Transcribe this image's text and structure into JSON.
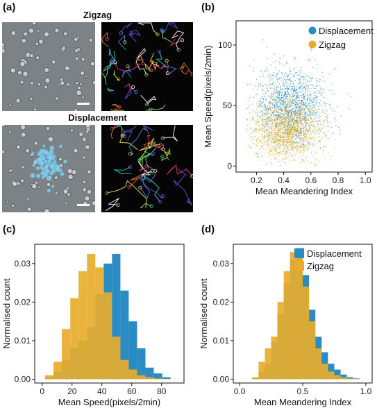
{
  "panels": {
    "a": {
      "label": "(a)",
      "top_title": "Zigzag",
      "bottom_title": "Displacement"
    },
    "b": {
      "label": "(b)"
    },
    "c": {
      "label": "(c)"
    },
    "d": {
      "label": "(d)"
    }
  },
  "colors": {
    "displacement": "#2b8cc4",
    "zigzag": "#e8ac2a",
    "micro_bg": "#7c8286",
    "track_bg": "#050505"
  },
  "chart_data": [
    {
      "id": "b",
      "type": "scatter",
      "xlabel": "Mean Meandering Index",
      "ylabel": "Mean Speed(pixels/2min)",
      "xlim": [
        0.05,
        1.05
      ],
      "ylim": [
        -5,
        120
      ],
      "xticks": [
        0.2,
        0.4,
        0.6,
        0.8,
        1.0
      ],
      "xtick_labels": [
        "0.2",
        "0.4",
        "0.6",
        "0.8",
        "1.0"
      ],
      "yticks": [
        0,
        50,
        100
      ],
      "ytick_labels": [
        "0",
        "50",
        "100"
      ],
      "legend_position": "top-right",
      "series": [
        {
          "name": "Displacement",
          "center": [
            0.45,
            48
          ],
          "spread": [
            0.13,
            16
          ]
        },
        {
          "name": "Zigzag",
          "center": [
            0.42,
            30
          ],
          "spread": [
            0.12,
            12
          ]
        }
      ]
    },
    {
      "id": "c",
      "type": "bar",
      "xlabel": "Mean Speed(pixels/2min)",
      "ylabel": "Normalised count",
      "xlim": [
        -5,
        95
      ],
      "ylim": [
        -0.001,
        0.035
      ],
      "xticks": [
        0,
        20,
        40,
        60,
        80
      ],
      "xtick_labels": [
        "0",
        "20",
        "40",
        "60",
        "80"
      ],
      "yticks": [
        0.0,
        0.01,
        0.02,
        0.03
      ],
      "ytick_labels": [
        "0.00",
        "0.01",
        "0.02",
        "0.03"
      ],
      "bin_edges": [
        2,
        7.6,
        13.2,
        18.8,
        24.4,
        30,
        35.6,
        41.2,
        46.8,
        52.4,
        58,
        63.6,
        69.2,
        74.8,
        80.4,
        86
      ],
      "series": [
        {
          "name": "Displacement",
          "values": [
            0.0005,
            0.002,
            0.005,
            0.008,
            0.01,
            0.0135,
            0.022,
            0.03,
            0.0325,
            0.023,
            0.015,
            0.008,
            0.003,
            0.0015,
            0.0005
          ]
        },
        {
          "name": "Zigzag",
          "values": [
            0.001,
            0.0045,
            0.013,
            0.021,
            0.028,
            0.0325,
            0.029,
            0.0225,
            0.011,
            0.005,
            0.0025,
            0.001,
            0.0005,
            0.0002,
            0.0001
          ]
        }
      ]
    },
    {
      "id": "d",
      "type": "bar",
      "xlabel": "Mean Meandering Index",
      "ylabel": "Normalised count",
      "xlim": [
        -0.05,
        1.05
      ],
      "ylim": [
        -0.001,
        0.035
      ],
      "xticks": [
        0.0,
        0.5,
        1.0
      ],
      "xtick_labels": [
        "0.0",
        "0.5",
        "1.0"
      ],
      "yticks": [
        0.0,
        0.01,
        0.02,
        0.03
      ],
      "ytick_labels": [
        "0.00",
        "0.01",
        "0.02",
        "0.03"
      ],
      "legend_position": "top-right",
      "bin_edges": [
        0.1,
        0.15,
        0.2,
        0.25,
        0.3,
        0.35,
        0.4,
        0.45,
        0.5,
        0.55,
        0.6,
        0.65,
        0.7,
        0.75,
        0.8,
        0.85,
        0.9,
        0.95
      ],
      "series": [
        {
          "name": "Displacement",
          "values": [
            0.0003,
            0.002,
            0.004,
            0.0095,
            0.017,
            0.025,
            0.031,
            0.034,
            0.027,
            0.018,
            0.011,
            0.007,
            0.004,
            0.0025,
            0.0012,
            0.0005,
            0.0002
          ]
        },
        {
          "name": "Zigzag",
          "values": [
            0.0005,
            0.0045,
            0.008,
            0.011,
            0.02,
            0.028,
            0.033,
            0.032,
            0.024,
            0.015,
            0.008,
            0.004,
            0.002,
            0.001,
            0.0005,
            0.0002,
            0.0001
          ]
        }
      ]
    }
  ]
}
